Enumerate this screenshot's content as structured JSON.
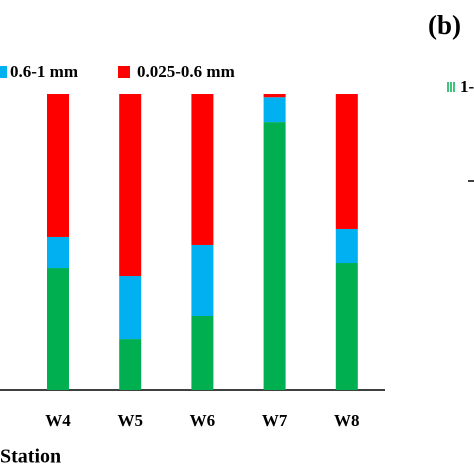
{
  "chart_data": {
    "type": "stacked-bar",
    "x_label": "Station",
    "panel_label": "(b)",
    "annotation": "1-",
    "categories": [
      "W4",
      "W5",
      "W6",
      "W7",
      "W8"
    ],
    "series": [
      {
        "color": "#00b050",
        "values": [
          41.2,
          17.2,
          25,
          90.5,
          42.9
        ]
      },
      {
        "name": "0.6-1 mm",
        "color": "#00b0f0",
        "values": [
          10.5,
          21.3,
          24,
          8.4,
          11.5
        ]
      },
      {
        "name": "0.025-0.6 mm",
        "color": "#ff0000",
        "values": [
          48.3,
          61.5,
          51,
          1.1,
          45.6
        ]
      }
    ],
    "ylim": [
      0,
      100
    ]
  }
}
